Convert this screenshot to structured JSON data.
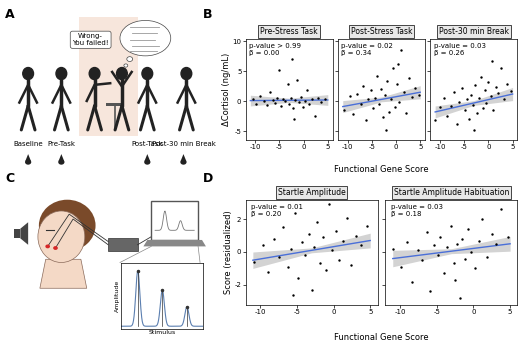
{
  "panel_labels": [
    "A",
    "B",
    "C",
    "D"
  ],
  "diagram_a": {
    "timepoints": [
      "Baseline",
      "Pre-Task",
      "Post-Task",
      "Post-30 min Break"
    ],
    "feedback": "Wrong-\nYou failed!"
  },
  "diagram_c": {
    "y_label": "Amplitude",
    "x_label": "Stimulus"
  },
  "chart_data": [
    {
      "type": "scatter",
      "title": "Pre-Stress Task",
      "annotation": "p-value > 0.99\nβ = 0.00",
      "y_label": "ΔCortisol (ng/mL)",
      "color": "#000000",
      "x": [
        -10.5,
        -9.8,
        -9,
        -8.2,
        -7.5,
        -7,
        -6.4,
        -6,
        -5.5,
        -5,
        -4.6,
        -4.2,
        -3.8,
        -3.3,
        -3,
        -2.6,
        -2.2,
        -1.8,
        -1.4,
        -1,
        -0.6,
        -0.2,
        0.3,
        0.8,
        1.2,
        1.8,
        2.3,
        3,
        3.6,
        4.4,
        -2.5,
        -2
      ],
      "values": [
        0.3,
        -0.4,
        0.8,
        0.1,
        -0.6,
        1.5,
        0.2,
        -0.3,
        0.5,
        5.2,
        -0.8,
        0.4,
        0.0,
        2.8,
        -0.5,
        0.6,
        -1.2,
        0.2,
        3.6,
        -0.2,
        0.7,
        -0.9,
        0.1,
        1.9,
        -0.4,
        0.3,
        -2.5,
        0.5,
        -0.1,
        0.4,
        7.1,
        -3.0
      ],
      "fit": {
        "x": [
          -11,
          -3,
          5
        ],
        "y": [
          0.1,
          0.15,
          0.2
        ],
        "lower": [
          -0.8,
          -0.2,
          -0.7
        ],
        "upper": [
          1.0,
          0.5,
          1.1
        ],
        "color": "#4a6fd8"
      },
      "xlim": [
        -12,
        6
      ],
      "ylim": [
        -6.5,
        10.5
      ],
      "xticks": [
        -10,
        -5,
        0,
        5
      ],
      "yticks": [
        -5,
        0,
        5,
        10
      ]
    },
    {
      "type": "scatter",
      "title": "Post-Stress Task",
      "annotation": "p-value = 0.02\nβ = 0.34",
      "x_label": "Functional Gene Score",
      "color": "#000000",
      "tick_labels": "x",
      "x": [
        -10.8,
        -9.5,
        -8.8,
        -8,
        -7.2,
        -6.8,
        -6.1,
        -5.7,
        -5.2,
        -4.8,
        -4.3,
        -3.9,
        -3.5,
        -3.1,
        -2.7,
        -2.3,
        -1.9,
        -1.5,
        -1.1,
        -0.7,
        -0.3,
        0.2,
        0.6,
        1.1,
        1.6,
        2.1,
        2.7,
        3.3,
        4,
        4.8,
        -2,
        0.5
      ],
      "values": [
        -1.5,
        0.8,
        -2.2,
        1.2,
        -0.5,
        2.5,
        -3.1,
        0.3,
        1.8,
        -1.2,
        0.6,
        4.2,
        -0.4,
        2.1,
        -2.6,
        1.0,
        3.3,
        -1.8,
        0.4,
        5.5,
        -0.9,
        2.8,
        -0.2,
        8.6,
        1.5,
        -2.0,
        3.9,
        0.7,
        2.2,
        1.1,
        -4.8,
        6.3
      ],
      "fit": {
        "x": [
          -11,
          -3,
          5
        ],
        "y": [
          -0.9,
          0.3,
          1.5
        ],
        "lower": [
          -1.9,
          -0.1,
          0.4
        ],
        "upper": [
          0.1,
          0.7,
          2.6
        ],
        "color": "#4a6fd8"
      },
      "xlim": [
        -12,
        6
      ],
      "ylim": [
        -6.5,
        10.5
      ],
      "xticks": [
        -10,
        -5,
        0,
        5
      ],
      "yticks": [
        -5,
        0,
        5,
        10
      ]
    },
    {
      "type": "scatter",
      "title": "Post-30 min Break",
      "annotation": "p-value = 0.03\nβ = 0.26",
      "color": "#000000",
      "tick_labels": "x",
      "x": [
        -11,
        -10,
        -9.2,
        -8.5,
        -7.8,
        -7.1,
        -6.5,
        -6,
        -5.4,
        -4.9,
        -4.4,
        -4,
        -3.6,
        -3.2,
        -2.8,
        -2.4,
        -2,
        -1.6,
        -1.2,
        -0.8,
        -0.4,
        0,
        0.5,
        1,
        1.5,
        2,
        2.6,
        3.2,
        3.9,
        4.6,
        -3,
        0.8
      ],
      "values": [
        -3.2,
        -1.0,
        0.5,
        -2.4,
        -0.8,
        1.6,
        -3.8,
        -0.2,
        2.2,
        -1.5,
        0.3,
        -2.9,
        1.1,
        -0.6,
        2.7,
        -1.9,
        0.5,
        4.1,
        -1.1,
        1.9,
        -0.3,
        3.2,
        0.8,
        -1.4,
        2.4,
        1.3,
        5.6,
        0.4,
        2.9,
        1.7,
        -4.9,
        6.8
      ],
      "fit": {
        "x": [
          -11,
          -3,
          5
        ],
        "y": [
          -1.8,
          -0.3,
          1.2
        ],
        "lower": [
          -2.8,
          -0.7,
          0.1
        ],
        "upper": [
          -0.8,
          0.1,
          2.3
        ],
        "color": "#4a6fd8"
      },
      "xlim": [
        -12,
        6
      ],
      "ylim": [
        -6.5,
        10.5
      ],
      "xticks": [
        -10,
        -5,
        0,
        5
      ],
      "yticks": [
        -5,
        0,
        5,
        10
      ]
    },
    {
      "type": "scatter",
      "title": "Startle Amplitude",
      "annotation": "p-value = 0.01\nβ = 0.20",
      "y_label": "Score (residualized)",
      "x_label": "Functional Gene Score",
      "color": "#000000",
      "x": [
        -10.8,
        -9.6,
        -8.9,
        -8.1,
        -7.4,
        -6.9,
        -6.2,
        -5.8,
        -5.3,
        -4.8,
        -4.3,
        -3.9,
        -3.4,
        -3,
        -2.6,
        -2.2,
        -1.8,
        -1.4,
        -1,
        -0.6,
        -0.2,
        0.3,
        0.8,
        1.3,
        1.9,
        2.4,
        3,
        3.7,
        4.5,
        -5.5
      ],
      "values": [
        -0.6,
        0.4,
        -1.2,
        0.8,
        -0.3,
        1.5,
        -0.9,
        0.2,
        2.4,
        -1.6,
        0.6,
        -0.2,
        1.1,
        -2.3,
        0.3,
        1.8,
        -0.7,
        0.9,
        -1.1,
        2.9,
        0.1,
        1.3,
        -0.5,
        0.7,
        2.1,
        -0.8,
        1.0,
        0.4,
        1.6,
        -2.6
      ],
      "fit": {
        "x": [
          -11,
          -3,
          5
        ],
        "y": [
          -0.5,
          0.1,
          0.7
        ],
        "lower": [
          -1.0,
          -0.05,
          0.25
        ],
        "upper": [
          0.0,
          0.25,
          1.15
        ],
        "color": "#4a6fd8"
      },
      "xlim": [
        -12,
        6
      ],
      "ylim": [
        -3.2,
        3.2
      ],
      "xticks": [
        -10,
        -5,
        0,
        5
      ],
      "yticks": [
        -2,
        0,
        2
      ]
    },
    {
      "type": "scatter",
      "title": "Startle Amplitude Habituation",
      "annotation": "p-value = 0.03\nβ = 0.18",
      "color": "#000000",
      "tick_labels": "x",
      "x": [
        -11,
        -9.9,
        -9.1,
        -8.4,
        -7.6,
        -7,
        -6.4,
        -5.9,
        -5.4,
        -4.9,
        -4.5,
        -4,
        -3.6,
        -3.1,
        -2.7,
        -2.3,
        -1.9,
        -1.5,
        -1.1,
        -0.7,
        -0.3,
        0.2,
        0.7,
        1.2,
        1.8,
        2.5,
        3.1,
        3.8,
        4.7,
        -2.5
      ],
      "values": [
        0.2,
        -0.9,
        0.6,
        -1.8,
        0.1,
        -0.5,
        1.2,
        -2.4,
        0.4,
        -0.2,
        0.9,
        -1.3,
        0.3,
        1.6,
        -0.7,
        0.5,
        -2.8,
        0.8,
        -0.4,
        1.4,
        0.0,
        -1.0,
        0.7,
        2.0,
        -0.3,
        1.1,
        0.5,
        2.6,
        0.9,
        -1.7
      ],
      "fit": {
        "x": [
          -11,
          -3,
          5
        ],
        "y": [
          -0.4,
          0.05,
          0.5
        ],
        "lower": [
          -0.9,
          -0.1,
          0.05
        ],
        "upper": [
          0.1,
          0.2,
          0.95
        ],
        "color": "#4a6fd8"
      },
      "xlim": [
        -12,
        6
      ],
      "ylim": [
        -3.2,
        3.2
      ],
      "xticks": [
        -10,
        -5,
        0,
        5
      ],
      "yticks": [
        -2,
        0,
        2
      ]
    }
  ]
}
